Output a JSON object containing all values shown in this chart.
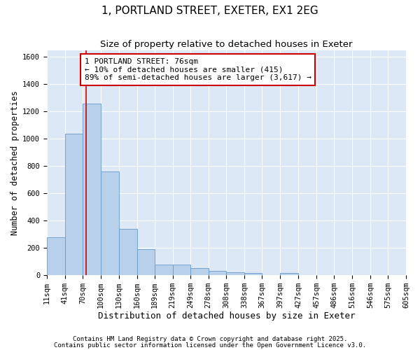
{
  "title1": "1, PORTLAND STREET, EXETER, EX1 2EG",
  "title2": "Size of property relative to detached houses in Exeter",
  "xlabel": "Distribution of detached houses by size in Exeter",
  "ylabel": "Number of detached properties",
  "bin_edges": [
    11,
    41,
    70,
    100,
    130,
    160,
    189,
    219,
    249,
    278,
    308,
    338,
    367,
    397,
    427,
    457,
    486,
    516,
    546,
    575,
    605
  ],
  "bar_heights": [
    280,
    1040,
    1260,
    760,
    340,
    190,
    80,
    80,
    50,
    30,
    20,
    15,
    0,
    15,
    0,
    0,
    0,
    0,
    0,
    0
  ],
  "bar_color": "#b8d0ea",
  "bar_edge_color": "#6699cc",
  "property_size": 76,
  "red_line_color": "#cc0000",
  "ylim": [
    0,
    1650
  ],
  "annotation_text": "1 PORTLAND STREET: 76sqm\n← 10% of detached houses are smaller (415)\n89% of semi-detached houses are larger (3,617) →",
  "annotation_box_color": "#ffffff",
  "annotation_box_edge_color": "#cc0000",
  "footnote1": "Contains HM Land Registry data © Crown copyright and database right 2025.",
  "footnote2": "Contains public sector information licensed under the Open Government Licence v3.0.",
  "figure_bg_color": "#ffffff",
  "axes_bg_color": "#dce8f5",
  "grid_color": "#ffffff",
  "title1_fontsize": 11,
  "title2_fontsize": 9.5,
  "xlabel_fontsize": 9,
  "ylabel_fontsize": 8.5,
  "tick_fontsize": 7.5,
  "annotation_fontsize": 8,
  "footnote_fontsize": 6.5
}
